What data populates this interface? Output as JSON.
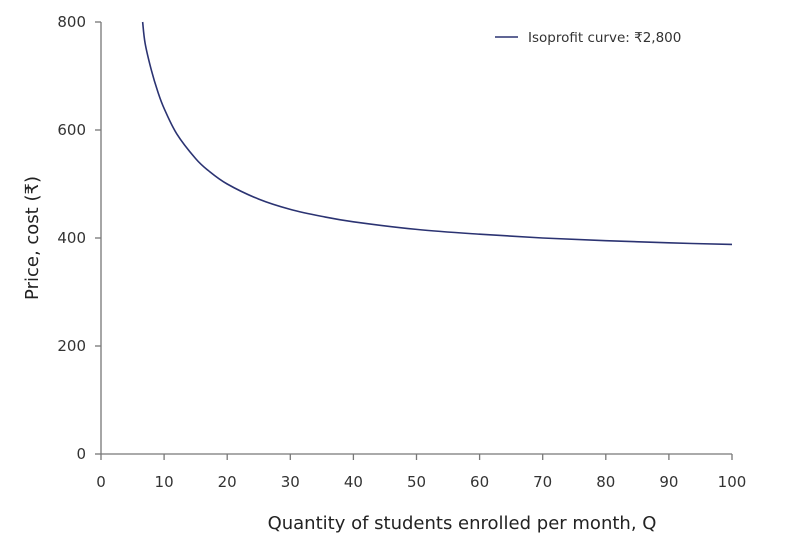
{
  "chart_data": {
    "type": "line",
    "title": "",
    "xlabel": "Quantity of students enrolled per month, Q",
    "ylabel": "Price, cost (₹)",
    "xlim": [
      0,
      100
    ],
    "ylim": [
      0,
      800
    ],
    "xticks": [
      "0",
      "10",
      "20",
      "30",
      "40",
      "50",
      "60",
      "70",
      "80",
      "90",
      "100"
    ],
    "yticks": [
      "0",
      "200",
      "400",
      "600",
      "800"
    ],
    "grid": false,
    "legend_position": "top-right",
    "series": [
      {
        "name": "Isoprofit curve: ₹2,800",
        "color": "#2b3372",
        "x": [
          6.6,
          7,
          8,
          9,
          10,
          12,
          15,
          17,
          20,
          25,
          30,
          35,
          40,
          50,
          60,
          70,
          80,
          90,
          100
        ],
        "y": [
          800,
          760,
          710,
          671,
          640,
          593,
          547,
          525,
          500,
          472,
          453,
          440,
          430,
          416,
          407,
          400,
          395,
          391,
          388
        ]
      }
    ]
  }
}
